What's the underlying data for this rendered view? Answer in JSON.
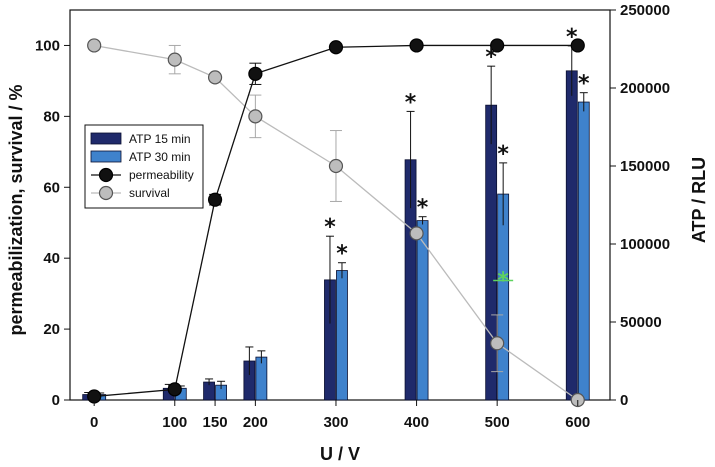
{
  "chart_data": {
    "type": "bar+line",
    "xlabel": "U / V",
    "ylabel_left": "permeabilization, survival / %",
    "ylabel_right": "ATP / RLU",
    "x_ticks": [
      0,
      100,
      150,
      200,
      300,
      400,
      500,
      600
    ],
    "x_tick_labels": [
      "0",
      "100",
      "150",
      "200",
      "300",
      "400",
      "500",
      "600"
    ],
    "xlim": [
      -30,
      640
    ],
    "ylim_left": [
      0,
      110
    ],
    "y_ticks_left": [
      0,
      20,
      40,
      60,
      80,
      100
    ],
    "y_tick_labels_left": [
      "0",
      "20",
      "40",
      "60",
      "80",
      "100"
    ],
    "ylim_right": [
      0,
      250000
    ],
    "y_ticks_right": [
      0,
      50000,
      100000,
      150000,
      200000,
      250000
    ],
    "y_tick_labels_right": [
      "0",
      "50000",
      "100000",
      "150000",
      "200000",
      "250000"
    ],
    "bar_series": [
      {
        "name": "ATP 15 min",
        "color": "#1f2a6b",
        "x": [
          0,
          100,
          150,
          200,
          300,
          400,
          500,
          600
        ],
        "values": [
          3500,
          7500,
          11500,
          25000,
          77000,
          154000,
          189000,
          211000
        ],
        "errors": [
          1300,
          2500,
          2000,
          9000,
          28000,
          31000,
          25000,
          16000
        ],
        "significant": [
          false,
          false,
          false,
          false,
          true,
          true,
          true,
          true
        ]
      },
      {
        "name": "ATP 30 min",
        "color": "#3f82cc",
        "x": [
          0,
          100,
          150,
          200,
          300,
          400,
          500,
          600
        ],
        "values": [
          3500,
          7500,
          9500,
          27500,
          83000,
          115000,
          132000,
          191000
        ],
        "errors": [
          1000,
          1500,
          2500,
          4000,
          5000,
          2500,
          20000,
          6000
        ],
        "significant": [
          false,
          false,
          false,
          false,
          true,
          true,
          true,
          true
        ]
      }
    ],
    "line_series": [
      {
        "name": "permeability",
        "color": "#111111",
        "marker": "circle-filled",
        "x": [
          0,
          100,
          150,
          200,
          300,
          400,
          500,
          600
        ],
        "values": [
          1,
          3,
          56.5,
          92,
          99.5,
          100,
          100,
          100
        ],
        "errors": [
          0.5,
          0.8,
          1.5,
          3,
          0,
          0,
          0,
          0
        ]
      },
      {
        "name": "survival",
        "color": "#bdbdbd",
        "marker": "circle-gray",
        "x": [
          0,
          100,
          150,
          200,
          300,
          400,
          500,
          600
        ],
        "values": [
          100,
          96,
          91,
          80,
          66,
          47,
          16,
          0
        ],
        "errors": [
          0,
          4,
          0,
          6,
          10,
          0,
          8,
          0
        ]
      }
    ],
    "annotations": [
      {
        "text": "*",
        "x": 500,
        "y_left": 34,
        "color": "#5fd35f",
        "note": "green asterisk over ATP 30 min bar at 500 V"
      }
    ],
    "significance_symbol": "*",
    "legend": {
      "placement": "upper-left",
      "entries": [
        "ATP 15 min",
        "ATP 30 min",
        "permeability",
        "survival"
      ]
    },
    "grid": false
  }
}
